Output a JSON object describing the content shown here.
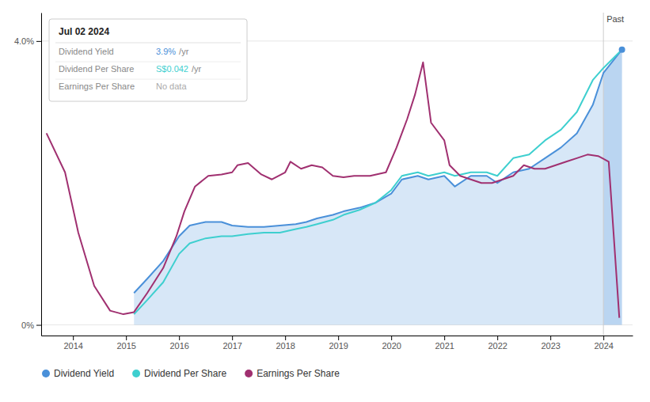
{
  "chart_data": {
    "type": "line",
    "xlim": [
      2013.4,
      2024.55
    ],
    "ylim": [
      -0.15,
      4.4
    ],
    "xticks": [
      2014,
      2015,
      2016,
      2017,
      2018,
      2019,
      2020,
      2021,
      2022,
      2023,
      2024
    ],
    "yticks": [
      {
        "value": 0.0,
        "label": "0%"
      },
      {
        "value": 4.0,
        "label": "4.0%"
      }
    ],
    "grid": "y",
    "legend": "bottom",
    "series": [
      {
        "name": "Dividend Yield",
        "type": "area",
        "color": "#4a90d9",
        "x": [
          2015.15,
          2015.4,
          2015.7,
          2016.0,
          2016.2,
          2016.5,
          2016.8,
          2017.0,
          2017.3,
          2017.6,
          2017.9,
          2018.2,
          2018.4,
          2018.6,
          2018.9,
          2019.1,
          2019.4,
          2019.7,
          2020.0,
          2020.2,
          2020.5,
          2020.7,
          2021.0,
          2021.2,
          2021.5,
          2021.8,
          2022.0,
          2022.3,
          2022.6,
          2022.9,
          2023.2,
          2023.5,
          2023.8,
          2024.0,
          2024.35
        ],
        "values": [
          0.45,
          0.65,
          0.9,
          1.25,
          1.4,
          1.45,
          1.45,
          1.4,
          1.38,
          1.38,
          1.4,
          1.42,
          1.45,
          1.5,
          1.55,
          1.6,
          1.65,
          1.72,
          1.85,
          2.05,
          2.1,
          2.05,
          2.1,
          1.95,
          2.1,
          2.1,
          2.0,
          2.15,
          2.2,
          2.35,
          2.5,
          2.7,
          3.1,
          3.55,
          3.88
        ]
      },
      {
        "name": "Dividend Per Share",
        "type": "line",
        "color": "#3ecfcf",
        "x": [
          2015.15,
          2015.4,
          2015.7,
          2016.0,
          2016.2,
          2016.5,
          2016.8,
          2017.0,
          2017.3,
          2017.6,
          2017.9,
          2018.2,
          2018.4,
          2018.6,
          2018.9,
          2019.1,
          2019.4,
          2019.7,
          2020.0,
          2020.2,
          2020.5,
          2020.7,
          2021.0,
          2021.2,
          2021.5,
          2021.8,
          2022.0,
          2022.3,
          2022.6,
          2022.9,
          2023.2,
          2023.5,
          2023.8,
          2024.0,
          2024.35
        ],
        "values": [
          0.15,
          0.35,
          0.6,
          1.0,
          1.15,
          1.22,
          1.25,
          1.25,
          1.28,
          1.3,
          1.3,
          1.35,
          1.38,
          1.42,
          1.48,
          1.55,
          1.62,
          1.72,
          1.9,
          2.1,
          2.15,
          2.1,
          2.15,
          2.1,
          2.15,
          2.15,
          2.1,
          2.35,
          2.4,
          2.6,
          2.75,
          3.0,
          3.45,
          3.62,
          3.88
        ]
      },
      {
        "name": "Earnings Per Share",
        "type": "line",
        "color": "#a03070",
        "x": [
          2013.5,
          2013.85,
          2014.1,
          2014.4,
          2014.7,
          2014.95,
          2015.15,
          2015.4,
          2015.7,
          2015.95,
          2016.1,
          2016.3,
          2016.55,
          2016.8,
          2017.0,
          2017.1,
          2017.3,
          2017.55,
          2017.75,
          2018.0,
          2018.1,
          2018.3,
          2018.5,
          2018.7,
          2018.9,
          2019.1,
          2019.3,
          2019.6,
          2019.9,
          2020.1,
          2020.3,
          2020.45,
          2020.6,
          2020.75,
          2021.0,
          2021.1,
          2021.3,
          2021.5,
          2021.7,
          2021.9,
          2022.1,
          2022.3,
          2022.5,
          2022.7,
          2022.9,
          2023.1,
          2023.3,
          2023.5,
          2023.7,
          2023.9,
          2024.1,
          2024.3
        ],
        "values": [
          2.7,
          2.15,
          1.3,
          0.55,
          0.2,
          0.15,
          0.18,
          0.45,
          0.8,
          1.25,
          1.6,
          1.95,
          2.1,
          2.12,
          2.15,
          2.25,
          2.28,
          2.12,
          2.05,
          2.15,
          2.3,
          2.2,
          2.25,
          2.22,
          2.1,
          2.08,
          2.1,
          2.1,
          2.15,
          2.5,
          2.9,
          3.25,
          3.7,
          2.85,
          2.6,
          2.25,
          2.1,
          2.05,
          2.0,
          2.0,
          2.05,
          2.1,
          2.25,
          2.2,
          2.2,
          2.25,
          2.3,
          2.35,
          2.4,
          2.38,
          2.3,
          0.1
        ]
      }
    ],
    "annotations": [
      {
        "text": "Past",
        "x": 2024.0
      }
    ],
    "tooltip": {
      "title": "Jul 02 2024",
      "rows": [
        {
          "label": "Dividend Yield",
          "value": "3.9%",
          "suffix": "/yr",
          "color": "#4a90d9"
        },
        {
          "label": "Dividend Per Share",
          "value": "S$0.042",
          "suffix": "/yr",
          "color": "#3ecfcf"
        },
        {
          "label": "Earnings Per Share",
          "value": "No data",
          "color": "#aaaaaa"
        }
      ]
    }
  }
}
